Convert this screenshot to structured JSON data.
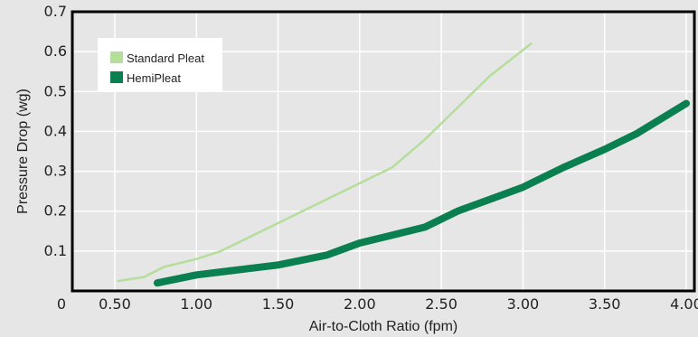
{
  "chart_data": {
    "type": "line",
    "xlabel": "Air-to-Cloth Ratio (fpm)",
    "ylabel": "Pressure Drop (wg)",
    "xlim": [
      0.24,
      4.05
    ],
    "ylim": [
      0,
      0.7
    ],
    "x_ticks": [
      0.5,
      1.0,
      1.5,
      2.0,
      2.5,
      3.0,
      3.5,
      4.0
    ],
    "x_tick_labels": [
      "0.50",
      "1.00",
      "1.50",
      "2.00",
      "2.50",
      "3.00",
      "3.50",
      "4.00"
    ],
    "x_origin_label": "0",
    "y_ticks": [
      0.1,
      0.2,
      0.3,
      0.4,
      0.5,
      0.6,
      0.7
    ],
    "y_tick_labels": [
      "0.1",
      "0.2",
      "0.3",
      "0.4",
      "0.5",
      "0.6",
      "0.7"
    ],
    "grid": true,
    "legend_position": "top-left",
    "series": [
      {
        "name": "Standard Pleat",
        "color": "#b5dd9b",
        "x": [
          0.52,
          0.68,
          0.8,
          1.0,
          1.15,
          1.3,
          1.5,
          1.7,
          1.9,
          2.1,
          2.2,
          2.4,
          2.6,
          2.8,
          3.05
        ],
        "y": [
          0.025,
          0.035,
          0.06,
          0.08,
          0.1,
          0.13,
          0.17,
          0.21,
          0.25,
          0.29,
          0.31,
          0.38,
          0.46,
          0.54,
          0.62
        ]
      },
      {
        "name": "HemiPleat",
        "color": "#0a7f4f",
        "x": [
          0.76,
          1.0,
          1.3,
          1.5,
          1.8,
          2.0,
          2.2,
          2.4,
          2.6,
          2.8,
          3.0,
          3.25,
          3.5,
          3.7,
          4.0
        ],
        "y": [
          0.02,
          0.04,
          0.055,
          0.065,
          0.09,
          0.12,
          0.14,
          0.16,
          0.2,
          0.23,
          0.26,
          0.31,
          0.355,
          0.395,
          0.47
        ]
      }
    ]
  }
}
